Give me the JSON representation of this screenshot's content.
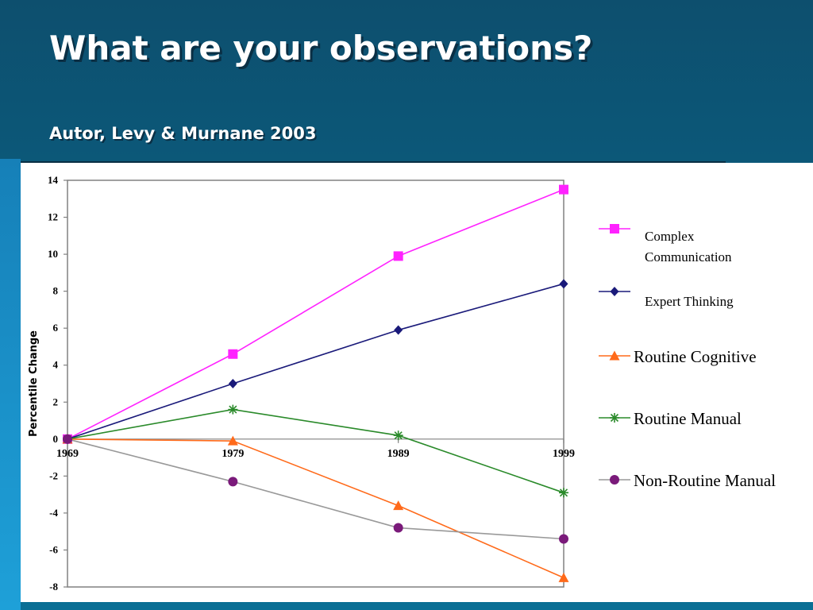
{
  "slide": {
    "title": "What are your observations?",
    "subtitle": "Autor, Levy & Murnane 2003"
  },
  "chart_data": {
    "type": "line",
    "title": "",
    "xlabel": "",
    "ylabel": "Percentile Change",
    "x": [
      1969,
      1979,
      1989,
      1999
    ],
    "x_tick_labels": [
      "1969",
      "1979",
      "1989",
      "1999"
    ],
    "ylim": [
      -8,
      14
    ],
    "y_ticks": [
      -8,
      -6,
      -4,
      -2,
      0,
      2,
      4,
      6,
      8,
      10,
      12,
      14
    ],
    "x_data_positions": [
      1969,
      1979,
      1989,
      1999
    ],
    "series": [
      {
        "name": "Complex Communication",
        "legend_lines": [
          "Complex",
          "Communication"
        ],
        "color": "#ff22ff",
        "marker": "square",
        "values": [
          0,
          4.6,
          9.9,
          13.5
        ]
      },
      {
        "name": "Expert Thinking",
        "legend_lines": [
          "Expert Thinking"
        ],
        "color": "#1a1a7a",
        "marker": "diamond",
        "values": [
          0,
          3.0,
          5.9,
          8.4
        ]
      },
      {
        "name": "Routine Cognitive",
        "legend_lines": [
          "Routine Cognitive"
        ],
        "color": "#ff6a1a",
        "marker": "triangle",
        "values": [
          0,
          -0.1,
          -3.6,
          -7.5
        ]
      },
      {
        "name": "Routine Manual",
        "legend_lines": [
          "Routine Manual"
        ],
        "color": "#2a8a2a",
        "marker": "asterisk",
        "values": [
          0,
          1.6,
          0.2,
          -2.9
        ]
      },
      {
        "name": "Non-Routine Manual",
        "legend_lines": [
          "Non-Routine Manual"
        ],
        "color": "#999999",
        "marker_color": "#7a1a7a",
        "marker": "circle",
        "values": [
          0,
          -2.3,
          -4.8,
          -5.4
        ]
      }
    ],
    "grid": false,
    "legend_position": "right"
  }
}
